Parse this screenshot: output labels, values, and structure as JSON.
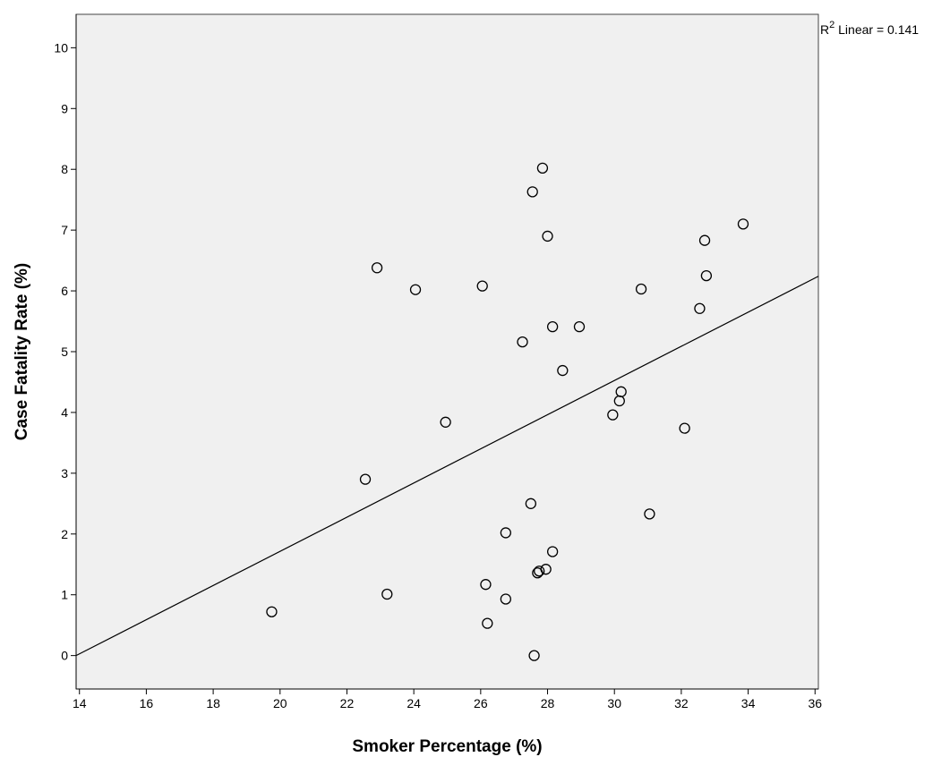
{
  "chart_data": {
    "type": "scatter",
    "xlabel": "Smoker Percentage (%)",
    "ylabel": "Case Fatality Rate (%)",
    "xlim": [
      13.9,
      36.1
    ],
    "ylim": [
      -0.55,
      10.55
    ],
    "x_ticks": [
      14,
      16,
      18,
      20,
      22,
      24,
      26,
      28,
      30,
      32,
      34,
      36
    ],
    "y_ticks": [
      0,
      1,
      2,
      3,
      4,
      5,
      6,
      7,
      8,
      9,
      10
    ],
    "grid": false,
    "plot_background": "#f0f0f0",
    "marker_style": "open-circle",
    "annotation": {
      "prefix": "R",
      "superscript": "2",
      "text": " Linear = 0.141"
    },
    "fit_line": {
      "type": "linear",
      "points": [
        [
          13.9,
          0.0
        ],
        [
          36.1,
          6.24
        ]
      ]
    },
    "points": [
      {
        "x": 19.75,
        "y": 0.72
      },
      {
        "x": 22.55,
        "y": 2.9
      },
      {
        "x": 22.9,
        "y": 6.38
      },
      {
        "x": 23.2,
        "y": 1.01
      },
      {
        "x": 24.05,
        "y": 6.02
      },
      {
        "x": 24.95,
        "y": 3.84
      },
      {
        "x": 26.05,
        "y": 6.08
      },
      {
        "x": 26.15,
        "y": 1.17
      },
      {
        "x": 26.2,
        "y": 0.53
      },
      {
        "x": 26.75,
        "y": 2.02
      },
      {
        "x": 26.75,
        "y": 0.93
      },
      {
        "x": 27.25,
        "y": 5.16
      },
      {
        "x": 27.5,
        "y": 2.5
      },
      {
        "x": 27.55,
        "y": 7.63
      },
      {
        "x": 27.6,
        "y": 0.0
      },
      {
        "x": 27.7,
        "y": 1.36
      },
      {
        "x": 27.75,
        "y": 1.39
      },
      {
        "x": 27.85,
        "y": 8.02
      },
      {
        "x": 27.95,
        "y": 1.42
      },
      {
        "x": 28.0,
        "y": 6.9
      },
      {
        "x": 28.15,
        "y": 5.41
      },
      {
        "x": 28.15,
        "y": 1.71
      },
      {
        "x": 28.45,
        "y": 4.69
      },
      {
        "x": 28.95,
        "y": 5.41
      },
      {
        "x": 29.95,
        "y": 3.96
      },
      {
        "x": 30.15,
        "y": 4.19
      },
      {
        "x": 30.2,
        "y": 4.34
      },
      {
        "x": 30.8,
        "y": 6.03
      },
      {
        "x": 31.05,
        "y": 2.33
      },
      {
        "x": 32.1,
        "y": 3.74
      },
      {
        "x": 32.55,
        "y": 5.71
      },
      {
        "x": 32.7,
        "y": 6.83
      },
      {
        "x": 32.75,
        "y": 6.25
      },
      {
        "x": 33.85,
        "y": 7.1
      }
    ]
  }
}
